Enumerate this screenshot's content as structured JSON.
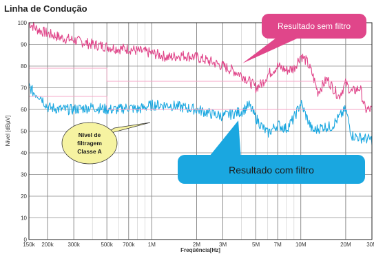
{
  "title": "Linha de Condução",
  "chart_data": {
    "type": "line",
    "xlabel": "Freqüência[Hz]",
    "ylabel": "Nível [dBµV]",
    "xscale": "log",
    "xlim": [
      150000,
      30000000
    ],
    "ylim": [
      0,
      100
    ],
    "grid": true,
    "x_ticks": [
      {
        "value": 150000,
        "label": "150k"
      },
      {
        "value": 200000,
        "label": "200k"
      },
      {
        "value": 300000,
        "label": "300k"
      },
      {
        "value": 500000,
        "label": "500k"
      },
      {
        "value": 700000,
        "label": "700k"
      },
      {
        "value": 1000000,
        "label": "1M"
      },
      {
        "value": 2000000,
        "label": "2M"
      },
      {
        "value": 3000000,
        "label": "3M"
      },
      {
        "value": 5000000,
        "label": "5M"
      },
      {
        "value": 7000000,
        "label": "7M"
      },
      {
        "value": 10000000,
        "label": "10M"
      },
      {
        "value": 20000000,
        "label": "20M"
      },
      {
        "value": 30000000,
        "label": "30M"
      }
    ],
    "y_ticks": [
      0,
      10,
      20,
      30,
      40,
      50,
      60,
      70,
      80,
      90,
      100
    ],
    "series": [
      {
        "name": "Resultado sem filtro",
        "color": "#e0468a",
        "x": [
          150000,
          170000,
          200000,
          250000,
          300000,
          400000,
          500000,
          600000,
          700000,
          800000,
          1000000,
          1300000,
          1600000,
          2000000,
          2500000,
          3000000,
          3500000,
          4000000,
          4500000,
          5000000,
          5500000,
          6000000,
          7000000,
          8000000,
          9000000,
          10000000,
          11000000,
          12000000,
          13000000,
          15000000,
          18000000,
          20000000,
          22000000,
          25000000,
          27000000,
          30000000
        ],
        "values": [
          100,
          97,
          95,
          93,
          92,
          90,
          89,
          88,
          88,
          87,
          86,
          84,
          85,
          84,
          82,
          80,
          78,
          76,
          73,
          70,
          72,
          76,
          80,
          78,
          79,
          85,
          82,
          76,
          68,
          74,
          66,
          72,
          68,
          70,
          60,
          60
        ]
      },
      {
        "name": "Resultado com filtro",
        "color": "#1aa7e0",
        "x": [
          150000,
          160000,
          180000,
          200000,
          250000,
          300000,
          400000,
          500000,
          600000,
          700000,
          800000,
          1000000,
          1300000,
          1600000,
          2000000,
          2500000,
          3000000,
          3500000,
          4000000,
          4500000,
          5000000,
          5500000,
          6000000,
          7000000,
          8000000,
          9000000,
          10000000,
          11000000,
          12000000,
          14000000,
          16000000,
          20000000,
          22000000,
          25000000,
          30000000
        ],
        "values": [
          71,
          68,
          66,
          61,
          60,
          60,
          61,
          60,
          60,
          61,
          60,
          62,
          62,
          61,
          60,
          58,
          57,
          58,
          59,
          62,
          56,
          52,
          49,
          53,
          51,
          56,
          63,
          56,
          50,
          52,
          52,
          60,
          48,
          47,
          46
        ]
      },
      {
        "color": "#f5a3c4",
        "x": [
          150000,
          500000,
          500000,
          5000000,
          5000000,
          30000000
        ],
        "values": [
          79,
          79,
          73,
          73,
          73,
          73
        ]
      },
      {
        "color": "#f5a3c4",
        "x": [
          150000,
          500000,
          500000,
          5000000,
          5000000,
          30000000
        ],
        "values": [
          66,
          66,
          60,
          60,
          60,
          60
        ]
      }
    ],
    "annotations": [
      {
        "text": "Resultado sem filtro",
        "color": "#e0468a",
        "text_color": "#ffffff"
      },
      {
        "text": "Resultado com filtro",
        "color": "#1aa7e0",
        "text_color": "#1a1a1a"
      },
      {
        "lines": [
          "Nível de",
          "filtragem",
          "Classe A"
        ],
        "color": "#f6f3a1",
        "text_color": "#1a1a1a"
      }
    ]
  }
}
